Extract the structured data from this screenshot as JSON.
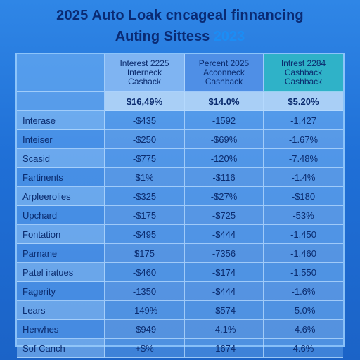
{
  "header": {
    "title": "2025 Auto Loak cncageal finnancing",
    "subtitle_main": "Auting Sittess",
    "subtitle_year": "2023"
  },
  "table": {
    "columns": [
      {
        "line1": "",
        "line2": "",
        "line3": ""
      },
      {
        "line1": "Interest 2225",
        "line2": "Interneck",
        "line3": "Cashack"
      },
      {
        "line1": "Percent 2025",
        "line2": "Acconneck",
        "line3": "Cashback"
      },
      {
        "line1": "Intrest 2284",
        "line2": "Cashback",
        "line3": "Cashback"
      }
    ],
    "summary": [
      "",
      "$16,49%",
      "$14.0%",
      "$5.20%"
    ],
    "rows": [
      {
        "label": "Interase",
        "v1": "-$435",
        "v2": "-1592",
        "v3": "-1,427"
      },
      {
        "label": "Inteiser",
        "v1": "-$250",
        "v2": "-$69%",
        "v3": "-1.67%"
      },
      {
        "label": "Scasid",
        "v1": "-$775",
        "v2": "-120%",
        "v3": "-7.48%"
      },
      {
        "label": "Fartinents",
        "v1": "$1%",
        "v2": "-$116",
        "v3": "-1.4%"
      },
      {
        "label": "Arpleerolies",
        "v1": "-$325",
        "v2": "-$27%",
        "v3": "-$180"
      },
      {
        "label": "Upchard",
        "v1": "-$175",
        "v2": "-$725",
        "v3": "-53%"
      },
      {
        "label": "Fontation",
        "v1": "-$495",
        "v2": "-$444",
        "v3": "-1.450"
      },
      {
        "label": "Parnane",
        "v1": "$175",
        "v2": "-7356",
        "v3": "-1.460"
      },
      {
        "label": "Patel iratues",
        "v1": "-$460",
        "v2": "-$174",
        "v3": "-1.550"
      },
      {
        "label": "Fagerity",
        "v1": "-1350",
        "v2": "-$444",
        "v3": "-1.6%"
      },
      {
        "label": "Lears",
        "v1": "-149%",
        "v2": "-$574",
        "v3": "-5.0%"
      },
      {
        "label": "Herwhes",
        "v1": "-$949",
        "v2": "-4.1%",
        "v3": "-4.6%"
      },
      {
        "label": "Sof Canch",
        "v1": "+$%",
        "v2": "-1674",
        "v3": "4.6%"
      }
    ]
  }
}
